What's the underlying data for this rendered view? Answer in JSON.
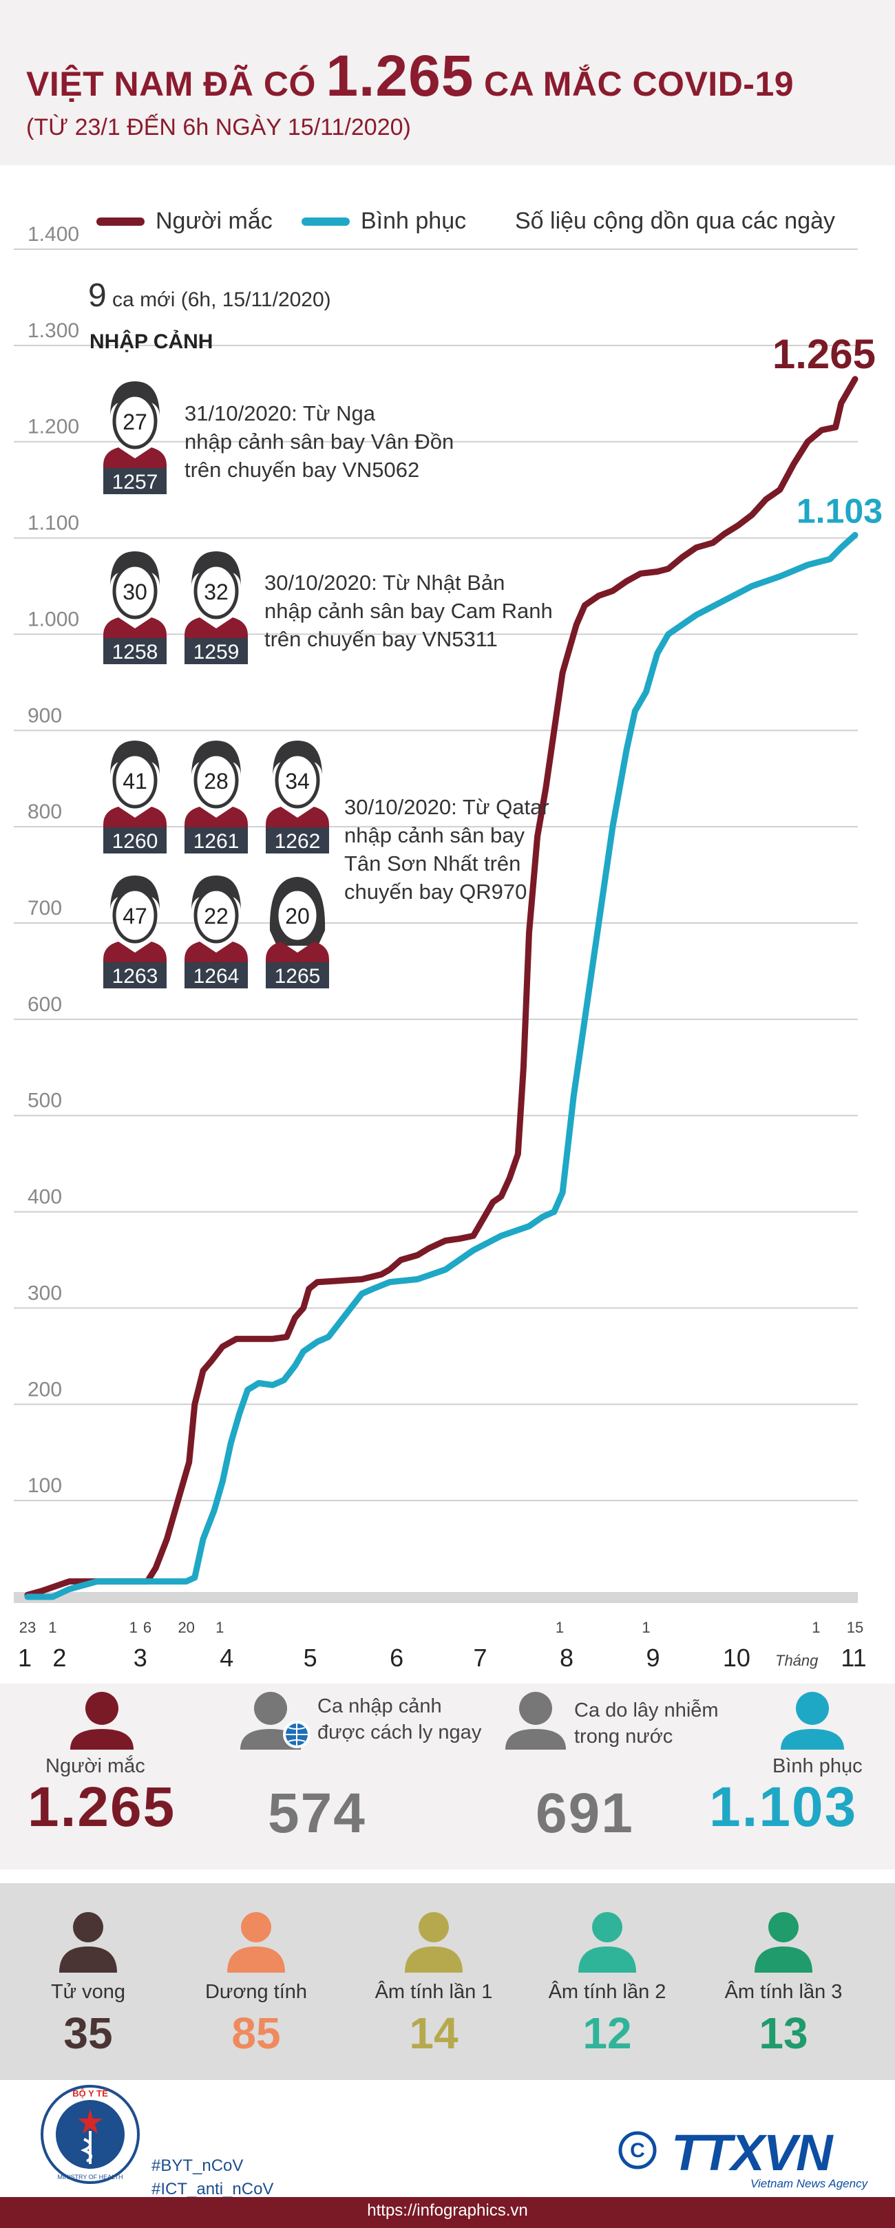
{
  "title": {
    "pre": "VIỆT NAM ĐÃ CÓ",
    "number": "1.265",
    "post": "CA MẮC COVID-19",
    "subtitle": "(TỪ 23/1 ĐẾN 6h NGÀY 15/11/2020)"
  },
  "legend": {
    "infected": "Người mắc",
    "recovered": "Bình phục",
    "note": "Số liệu cộng dồn qua các ngày"
  },
  "colors": {
    "infected": "#7a1a27",
    "recovered": "#1fa7c6",
    "imported": "#777777",
    "domestic": "#777777",
    "death": "#4a3434",
    "positive": "#ef8a5e",
    "neg1": "#b6a94d",
    "neg2": "#2fb499",
    "neg3": "#1f9b6c"
  },
  "annotations": {
    "new_cases_num": "9",
    "new_cases_text": "ca mới (6h, 15/11/2020)",
    "import_label": "NHẬP CẢNH",
    "group1": "31/10/2020: Từ Nga\nnhập cảnh sân bay Vân Đồn\ntrên chuyến bay VN5062",
    "group2": "30/10/2020: Từ Nhật Bản\nnhập cảnh sân bay Cam Ranh\ntrên chuyến bay VN5311",
    "group3": "30/10/2020: Từ Qatar\nnhập cảnh sân bay\nTân Sơn Nhất trên\nchuyến bay QR970"
  },
  "patients": [
    {
      "age": "27",
      "id": "1257",
      "gender": "male"
    },
    {
      "age": "30",
      "id": "1258",
      "gender": "male"
    },
    {
      "age": "32",
      "id": "1259",
      "gender": "male"
    },
    {
      "age": "41",
      "id": "1260",
      "gender": "male"
    },
    {
      "age": "28",
      "id": "1261",
      "gender": "male"
    },
    {
      "age": "34",
      "id": "1262",
      "gender": "male"
    },
    {
      "age": "47",
      "id": "1263",
      "gender": "male"
    },
    {
      "age": "22",
      "id": "1264",
      "gender": "male"
    },
    {
      "age": "20",
      "id": "1265",
      "gender": "female"
    }
  ],
  "chart_data": {
    "type": "line",
    "title": "Số liệu cộng dồn qua các ngày",
    "xlabel": "Tháng",
    "ylabel": "",
    "ylim": [
      0,
      1400
    ],
    "xlim": [
      0,
      297
    ],
    "yticks": [
      100,
      200,
      300,
      400,
      500,
      600,
      700,
      800,
      900,
      "1.000",
      "1.100",
      "1.200",
      "1.300",
      "1.400"
    ],
    "ytick_values": [
      100,
      200,
      300,
      400,
      500,
      600,
      700,
      800,
      900,
      1000,
      1100,
      1200,
      1300,
      1400
    ],
    "months": [
      {
        "label": "1",
        "day": 0
      },
      {
        "label": "2",
        "day": 9
      },
      {
        "label": "3",
        "day": 38
      },
      {
        "label": "4",
        "day": 69
      },
      {
        "label": "5",
        "day": 99
      },
      {
        "label": "6",
        "day": 130
      },
      {
        "label": "7",
        "day": 160
      },
      {
        "label": "8",
        "day": 191
      },
      {
        "label": "9",
        "day": 222
      },
      {
        "label": "10",
        "day": 252
      },
      {
        "label": "11",
        "day": 283
      }
    ],
    "day_ticks": [
      {
        "label": "23",
        "day": 0
      },
      {
        "label": "1",
        "day": 9
      },
      {
        "label": "1",
        "day": 38
      },
      {
        "label": "6",
        "day": 43
      },
      {
        "label": "20",
        "day": 57
      },
      {
        "label": "1",
        "day": 69
      },
      {
        "label": "1",
        "day": 191
      },
      {
        "label": "1",
        "day": 222
      },
      {
        "label": "1",
        "day": 283
      },
      {
        "label": "15",
        "day": 297
      }
    ],
    "series": [
      {
        "name": "Người mắc",
        "final_label": "1.265",
        "points": [
          [
            0,
            2
          ],
          [
            5,
            6
          ],
          [
            9,
            10
          ],
          [
            15,
            16
          ],
          [
            25,
            16
          ],
          [
            35,
            16
          ],
          [
            43,
            16
          ],
          [
            46,
            30
          ],
          [
            50,
            60
          ],
          [
            54,
            100
          ],
          [
            58,
            140
          ],
          [
            60,
            200
          ],
          [
            63,
            235
          ],
          [
            66,
            245
          ],
          [
            70,
            260
          ],
          [
            75,
            268
          ],
          [
            80,
            268
          ],
          [
            88,
            268
          ],
          [
            93,
            270
          ],
          [
            96,
            290
          ],
          [
            99,
            300
          ],
          [
            101,
            320
          ],
          [
            104,
            327
          ],
          [
            110,
            328
          ],
          [
            120,
            330
          ],
          [
            127,
            335
          ],
          [
            130,
            340
          ],
          [
            134,
            350
          ],
          [
            140,
            355
          ],
          [
            144,
            362
          ],
          [
            150,
            370
          ],
          [
            155,
            372
          ],
          [
            160,
            375
          ],
          [
            163,
            390
          ],
          [
            167,
            410
          ],
          [
            170,
            416
          ],
          [
            173,
            435
          ],
          [
            176,
            460
          ],
          [
            178,
            550
          ],
          [
            180,
            690
          ],
          [
            183,
            790
          ],
          [
            186,
            840
          ],
          [
            189,
            900
          ],
          [
            192,
            960
          ],
          [
            195,
            990
          ],
          [
            197,
            1010
          ],
          [
            200,
            1030
          ],
          [
            205,
            1040
          ],
          [
            210,
            1045
          ],
          [
            215,
            1055
          ],
          [
            220,
            1063
          ],
          [
            226,
            1065
          ],
          [
            230,
            1068
          ],
          [
            235,
            1080
          ],
          [
            240,
            1090
          ],
          [
            246,
            1095
          ],
          [
            250,
            1104
          ],
          [
            255,
            1113
          ],
          [
            260,
            1124
          ],
          [
            265,
            1140
          ],
          [
            270,
            1150
          ],
          [
            275,
            1177
          ],
          [
            280,
            1200
          ],
          [
            285,
            1212
          ],
          [
            290,
            1215
          ],
          [
            292,
            1240
          ],
          [
            295,
            1255
          ],
          [
            297,
            1265
          ]
        ]
      },
      {
        "name": "Bình phục",
        "final_label": "1.103",
        "points": [
          [
            0,
            0
          ],
          [
            9,
            0
          ],
          [
            15,
            8
          ],
          [
            25,
            16
          ],
          [
            55,
            16
          ],
          [
            57,
            16
          ],
          [
            60,
            20
          ],
          [
            63,
            60
          ],
          [
            67,
            90
          ],
          [
            70,
            120
          ],
          [
            73,
            160
          ],
          [
            76,
            190
          ],
          [
            79,
            215
          ],
          [
            83,
            222
          ],
          [
            88,
            220
          ],
          [
            92,
            225
          ],
          [
            96,
            240
          ],
          [
            99,
            255
          ],
          [
            104,
            265
          ],
          [
            108,
            270
          ],
          [
            112,
            285
          ],
          [
            116,
            300
          ],
          [
            120,
            315
          ],
          [
            124,
            320
          ],
          [
            130,
            327
          ],
          [
            140,
            330
          ],
          [
            150,
            340
          ],
          [
            160,
            360
          ],
          [
            170,
            375
          ],
          [
            175,
            380
          ],
          [
            180,
            385
          ],
          [
            185,
            395
          ],
          [
            189,
            400
          ],
          [
            192,
            420
          ],
          [
            196,
            520
          ],
          [
            200,
            600
          ],
          [
            205,
            700
          ],
          [
            210,
            800
          ],
          [
            215,
            880
          ],
          [
            218,
            920
          ],
          [
            222,
            940
          ],
          [
            226,
            980
          ],
          [
            230,
            1000
          ],
          [
            235,
            1010
          ],
          [
            240,
            1020
          ],
          [
            250,
            1035
          ],
          [
            260,
            1050
          ],
          [
            270,
            1060
          ],
          [
            280,
            1072
          ],
          [
            288,
            1078
          ],
          [
            292,
            1090
          ],
          [
            297,
            1103
          ]
        ]
      }
    ]
  },
  "stats": {
    "infected": {
      "label": "Người mắc",
      "value": "1.265"
    },
    "imported": {
      "label": "Ca nhập cảnh\nđược cách ly ngay",
      "value": "574"
    },
    "domestic": {
      "label": "Ca do lây nhiễm\ntrong nước",
      "value": "691"
    },
    "recovered": {
      "label": "Bình phục",
      "value": "1.103"
    }
  },
  "sub_stats": [
    {
      "label": "Tử vong",
      "value": "35",
      "color_key": "death"
    },
    {
      "label": "Dương tính",
      "value": "85",
      "color_key": "positive"
    },
    {
      "label": "Âm tính lần 1",
      "value": "14",
      "color_key": "neg1"
    },
    {
      "label": "Âm tính lần 2",
      "value": "12",
      "color_key": "neg2"
    },
    {
      "label": "Âm tính lần 3",
      "value": "13",
      "color_key": "neg3"
    }
  ],
  "footer": {
    "tag1": "#BYT_nCoV",
    "tag2": "#ICT_anti_nCoV",
    "url": "https://infographics.vn",
    "ministry_top": "BỘ Y TẾ",
    "ministry_bottom": "MINISTRY OF HEALTH",
    "agency": "TTXVN",
    "agency_sub": "Vietnam News Agency",
    "copyright": "©",
    "thang": "Tháng"
  }
}
